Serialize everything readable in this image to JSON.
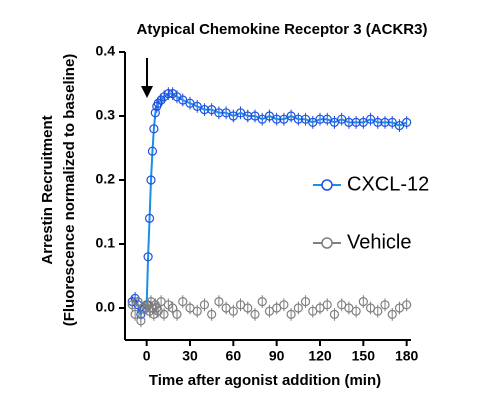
{
  "chart_data": {
    "type": "scatter",
    "title": "Atypical Chemokine Receptor 3 (ACKR3)",
    "xlabel": "Time after agonist addition (min)",
    "ylabel": [
      "Arrestin Recruitment",
      "(Fluorescence normalized to baseline)"
    ],
    "x": [
      -10,
      -8,
      -6,
      -4,
      -2,
      0,
      1,
      2,
      3,
      4,
      5,
      6,
      7,
      8,
      10,
      12,
      15,
      18,
      21,
      25,
      30,
      35,
      40,
      45,
      50,
      55,
      60,
      65,
      70,
      75,
      80,
      85,
      90,
      95,
      100,
      105,
      110,
      115,
      120,
      125,
      130,
      135,
      140,
      145,
      150,
      155,
      160,
      165,
      170,
      175,
      180
    ],
    "series": [
      {
        "name": "CXCL-12",
        "color": "#1f4fe0",
        "line_color": "#1a8fe8",
        "line": true,
        "values": [
          0.01,
          0.015,
          0.005,
          -0.01,
          0.0,
          0.005,
          0.08,
          0.14,
          0.2,
          0.245,
          0.28,
          0.305,
          0.315,
          0.32,
          0.325,
          0.33,
          0.335,
          0.335,
          0.33,
          0.325,
          0.32,
          0.315,
          0.31,
          0.31,
          0.305,
          0.305,
          0.3,
          0.305,
          0.3,
          0.3,
          0.295,
          0.3,
          0.295,
          0.295,
          0.3,
          0.295,
          0.295,
          0.29,
          0.295,
          0.295,
          0.29,
          0.295,
          0.29,
          0.29,
          0.29,
          0.295,
          0.29,
          0.29,
          0.29,
          0.285,
          0.29
        ],
        "errors": [
          0.01,
          0.01,
          0.01,
          0.01,
          0.01,
          0.01,
          0.005,
          0.005,
          0.005,
          0.005,
          0.005,
          0.01,
          0.01,
          0.01,
          0.01,
          0.01,
          0.01,
          0.01,
          0.01,
          0.01,
          0.01,
          0.01,
          0.01,
          0.01,
          0.01,
          0.01,
          0.01,
          0.01,
          0.01,
          0.01,
          0.01,
          0.01,
          0.01,
          0.01,
          0.01,
          0.01,
          0.01,
          0.01,
          0.01,
          0.01,
          0.01,
          0.01,
          0.01,
          0.01,
          0.01,
          0.01,
          0.01,
          0.01,
          0.01,
          0.01,
          0.01
        ]
      },
      {
        "name": "Vehicle",
        "color": "#7f7f7f",
        "line_color": "#7f7f7f",
        "line": false,
        "values": [
          0.005,
          -0.01,
          0.01,
          -0.02,
          0.0,
          0.0,
          0.005,
          -0.005,
          0.01,
          0.0,
          -0.01,
          0.005,
          0.0,
          -0.005,
          0.01,
          -0.01,
          0.005,
          0.0,
          -0.01,
          0.01,
          0.0,
          -0.005,
          0.005,
          -0.01,
          0.01,
          0.0,
          -0.005,
          0.005,
          0.0,
          -0.01,
          0.01,
          -0.005,
          0.0,
          0.005,
          -0.01,
          0.0,
          0.01,
          -0.005,
          0.0,
          0.005,
          -0.01,
          0.005,
          0.0,
          -0.005,
          0.01,
          0.0,
          -0.005,
          0.005,
          -0.01,
          0.0,
          0.005
        ],
        "errors": [
          0.01,
          0.01,
          0.01,
          0.01,
          0.01,
          0.01,
          0.01,
          0.01,
          0.01,
          0.01,
          0.01,
          0.01,
          0.01,
          0.01,
          0.01,
          0.01,
          0.01,
          0.01,
          0.01,
          0.01,
          0.01,
          0.01,
          0.01,
          0.01,
          0.01,
          0.01,
          0.01,
          0.01,
          0.01,
          0.01,
          0.01,
          0.01,
          0.01,
          0.01,
          0.01,
          0.01,
          0.01,
          0.01,
          0.01,
          0.01,
          0.01,
          0.01,
          0.01,
          0.01,
          0.01,
          0.01,
          0.01,
          0.01,
          0.01,
          0.01,
          0.01
        ]
      }
    ],
    "xlim": [
      -15,
      183
    ],
    "xticks": [
      0,
      30,
      60,
      90,
      120,
      150,
      180
    ],
    "ylim": [
      -0.05,
      0.4
    ],
    "yticks": [
      {
        "value": 0,
        "label": "0.0"
      },
      0.1,
      0.2,
      0.3,
      0.4
    ],
    "grid": false,
    "legend": "right"
  }
}
